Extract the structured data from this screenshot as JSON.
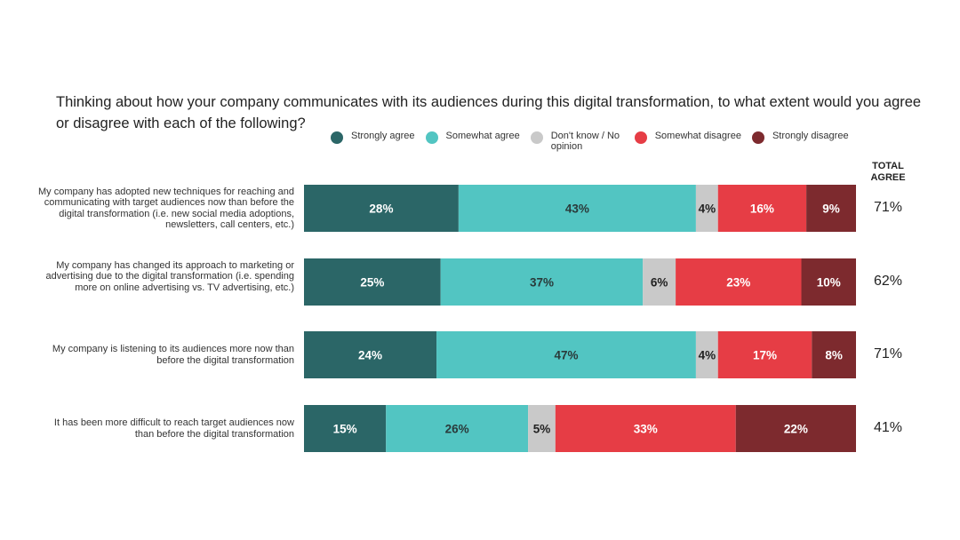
{
  "chart_data": {
    "type": "bar",
    "orientation": "horizontal",
    "stacked": true,
    "title": "Thinking about how your company communicates with its audiences during this digital transformation, to what extent would you agree or disagree with each of the following?",
    "legend_position": "top",
    "categories": [
      "My company has adopted new techniques for reaching and communicating with target audiences now than before the digital transformation (i.e. new social media adoptions, newsletters, call centers, etc.)",
      "My company has changed its approach to marketing or advertising due to the digital transformation (i.e. spending more on online advertising vs. TV advertising, etc.)",
      "My company is listening to its audiences more now than before the digital transformation",
      "It has been more difficult to reach target audiences now than before the digital transformation"
    ],
    "series": [
      {
        "name": "Strongly agree",
        "color": "#2b6667",
        "label_color": "#ffffff",
        "values": [
          28,
          25,
          24,
          15
        ]
      },
      {
        "name": "Somewhat agree",
        "color": "#52c5c2",
        "label_color": "#2a3a3a",
        "values": [
          43,
          37,
          47,
          26
        ]
      },
      {
        "name": "Don't know / No opinion",
        "color": "#c9c9c9",
        "label_color": "#222222",
        "values": [
          4,
          6,
          4,
          5
        ]
      },
      {
        "name": "Somewhat disagree",
        "color": "#e63d45",
        "label_color": "#ffffff",
        "values": [
          16,
          23,
          17,
          33
        ]
      },
      {
        "name": "Strongly disagree",
        "color": "#7d2a2e",
        "label_color": "#ffffff",
        "values": [
          9,
          10,
          8,
          22
        ]
      }
    ],
    "value_suffix": "%",
    "total_agree": {
      "header": "TOTAL AGREE",
      "values": [
        "71%",
        "62%",
        "71%",
        "41%"
      ]
    }
  }
}
